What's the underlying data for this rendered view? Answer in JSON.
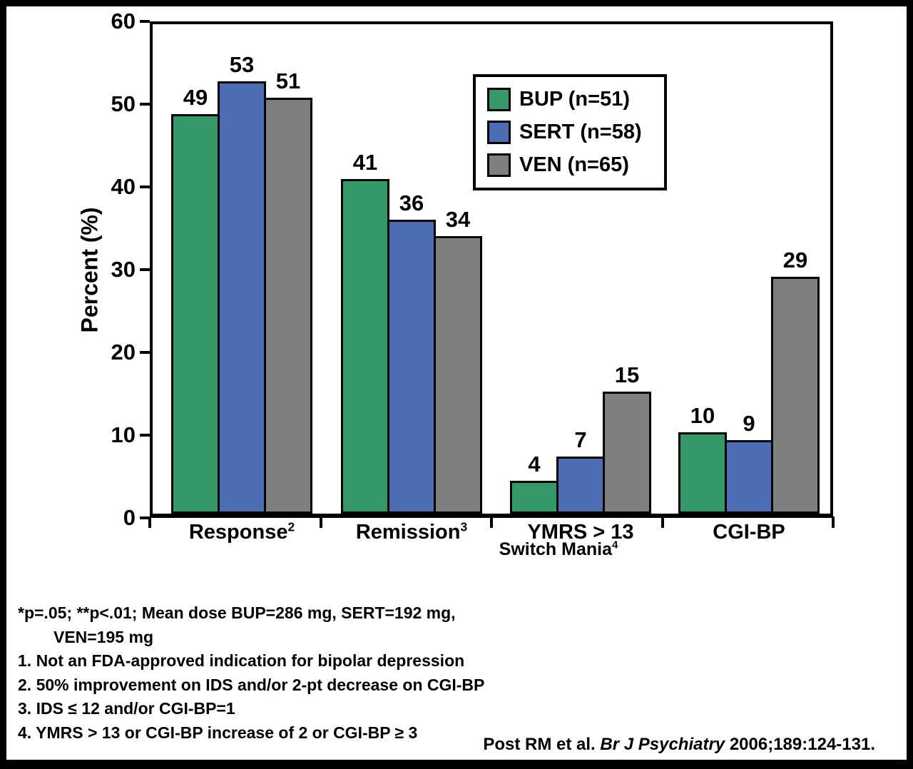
{
  "chart_data": {
    "type": "bar",
    "ylabel": "Percent (%)",
    "ylim": [
      0,
      60
    ],
    "yticks": [
      0,
      10,
      20,
      30,
      40,
      50,
      60
    ],
    "grid": false,
    "legend_position": "top-right-inside",
    "categories": [
      {
        "label": "Response",
        "sup": "2"
      },
      {
        "label": "Remission",
        "sup": "3"
      },
      {
        "label": "YMRS > 13",
        "sup": ""
      },
      {
        "label": "CGI-BP",
        "sup": ""
      }
    ],
    "group_sublabel": {
      "label": "Switch Mania",
      "sup": "4"
    },
    "series": [
      {
        "name": "BUP (n=51)",
        "color": "#339966",
        "values": [
          49,
          41,
          4,
          10
        ]
      },
      {
        "name": "SERT (n=58)",
        "color": "#4C6DB3",
        "values": [
          53,
          36,
          7,
          9
        ]
      },
      {
        "name": "VEN (n=65)",
        "color": "#7F7F7F",
        "values": [
          51,
          34,
          15,
          29
        ]
      }
    ]
  },
  "footnotes": {
    "lines": [
      {
        "text": "*p=.05; **p<.01; Mean dose BUP=286 mg, SERT=192 mg,",
        "indent": false
      },
      {
        "text": "VEN=195 mg",
        "indent": true
      },
      {
        "text": "1. Not an FDA-approved indication for bipolar depression",
        "indent": false
      },
      {
        "text": "2. 50% improvement on IDS and/or 2-pt decrease on CGI-BP",
        "indent": false
      },
      {
        "text": "3. IDS ≤ 12 and/or CGI-BP=1",
        "indent": false
      },
      {
        "text": "4. YMRS > 13 or CGI-BP increase of 2 or CGI-BP ≥ 3",
        "indent": false
      }
    ]
  },
  "citation": {
    "prefix": "Post RM et al. ",
    "italic": "Br J Psychiatry",
    "suffix": " 2006;189:124-131."
  }
}
